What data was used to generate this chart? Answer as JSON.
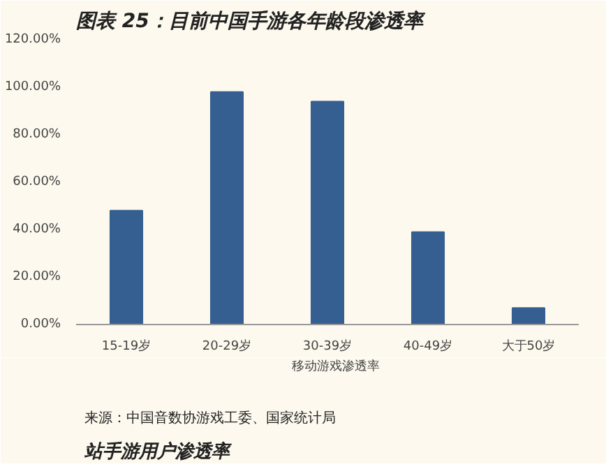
{
  "chart_data": {
    "type": "bar",
    "title": "图表 25：目前中国手游各年龄段渗透率",
    "categories": [
      "15-19岁",
      "20-29岁",
      "30-39岁",
      "40-49岁",
      "大于50岁"
    ],
    "series": [
      {
        "name": "移动游戏渗透率",
        "color": "#365f91",
        "values": [
          48,
          98,
          94,
          39,
          7
        ]
      }
    ],
    "ylim": [
      0,
      120
    ],
    "yticks": [
      {
        "value": 0,
        "label": "0.00%"
      },
      {
        "value": 20,
        "label": "20.00%"
      },
      {
        "value": 40,
        "label": "40.00%"
      },
      {
        "value": 60,
        "label": "60.00%"
      },
      {
        "value": 80,
        "label": "80.00%"
      },
      {
        "value": 100,
        "label": "100.00%"
      },
      {
        "value": 120,
        "label": "120.00%"
      }
    ],
    "grid": false,
    "legend": "bottom",
    "annotations": [
      "来源：中国音数协游戏工委、国家统计局",
      "站手游用户渗透率"
    ]
  }
}
